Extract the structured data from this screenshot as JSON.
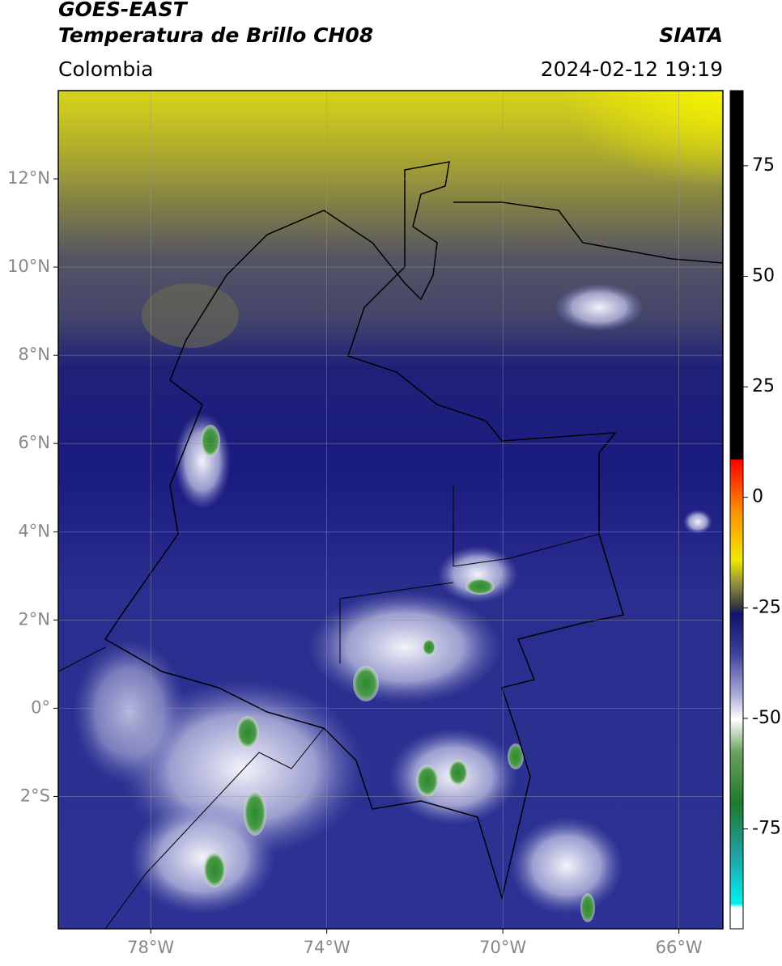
{
  "header": {
    "satellite": "GOES-EAST",
    "product": "Temperatura de Brillo CH08",
    "source": "SIATA",
    "region": "Colombia",
    "datetime": "2024-02-12 19:19"
  },
  "map": {
    "xlim": [
      -80.1,
      -65
    ],
    "ylim": [
      -5,
      14
    ],
    "xticks": [
      {
        "value": -78,
        "label": "78°W"
      },
      {
        "value": -74,
        "label": "74°W"
      },
      {
        "value": -70,
        "label": "70°W"
      },
      {
        "value": -66,
        "label": "66°W"
      }
    ],
    "yticks": [
      {
        "value": 12,
        "label": "12°N"
      },
      {
        "value": 10,
        "label": "10°N"
      },
      {
        "value": 8,
        "label": "8°N"
      },
      {
        "value": 6,
        "label": "6°N"
      },
      {
        "value": 4,
        "label": "4°N"
      },
      {
        "value": 2,
        "label": "2°N"
      },
      {
        "value": 0,
        "label": "0°"
      },
      {
        "value": -2,
        "label": "2°S"
      }
    ],
    "grid": true
  },
  "colorbar": {
    "ylim": [
      -97.6,
      92
    ],
    "yticks": [
      75,
      50,
      25,
      0,
      -25,
      -50,
      -75
    ]
  }
}
